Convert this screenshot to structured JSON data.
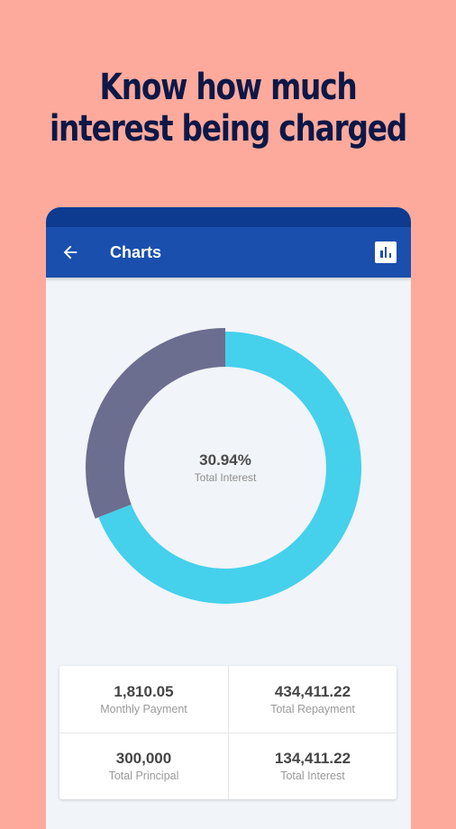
{
  "headline": {
    "line1": "Know how much",
    "line2": "interest being charged"
  },
  "app_bar": {
    "title": "Charts",
    "back_icon": "arrow-left-icon",
    "action_icon": "bar-chart-icon"
  },
  "colors": {
    "background": "#fdaa9c",
    "headline": "#0d1847",
    "app_bar": "#1a4fae",
    "status_bar": "#0d3b8f",
    "principal_segment": "#45d0ec",
    "interest_segment": "#6b6e8f"
  },
  "chart_data": {
    "type": "pie",
    "style": "donut",
    "categories": [
      "Total Principal",
      "Total Interest"
    ],
    "values": [
      300000,
      134411.22
    ],
    "center_value": "30.94%",
    "center_label": "Total Interest",
    "legend": "none"
  },
  "stats": [
    {
      "value": "1,810.05",
      "label": "Monthly Payment"
    },
    {
      "value": "434,411.22",
      "label": "Total Repayment"
    },
    {
      "value": "300,000",
      "label": "Total Principal"
    },
    {
      "value": "134,411.22",
      "label": "Total Interest"
    }
  ]
}
